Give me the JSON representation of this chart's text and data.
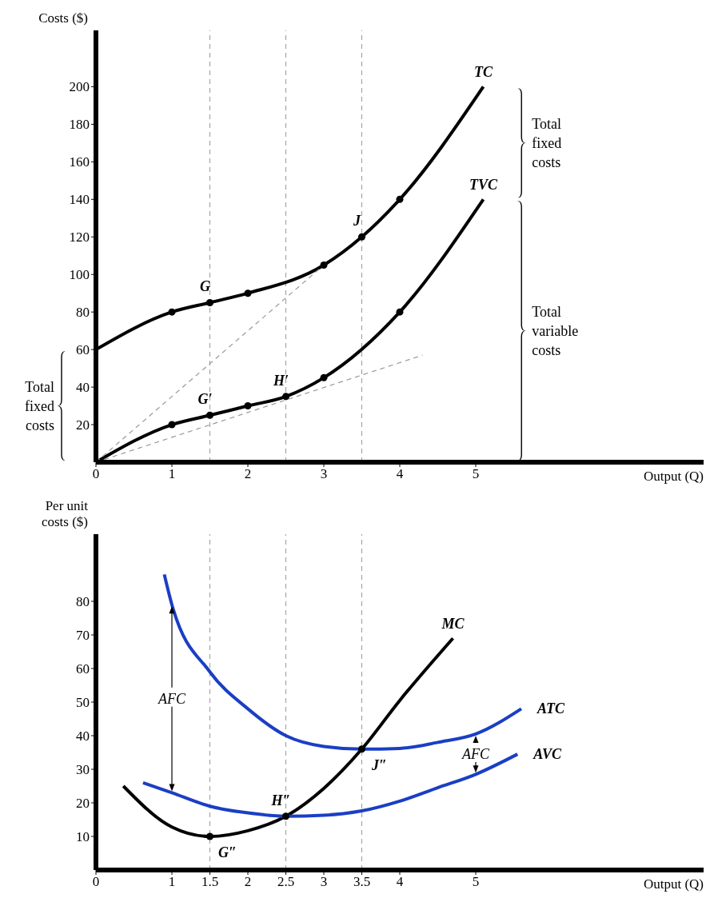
{
  "chart_data": [
    {
      "type": "line",
      "ylabel": "Costs ($)",
      "xlabel": "Output (Q)",
      "xlim": [
        0,
        8
      ],
      "xticks": [
        0,
        1,
        2,
        3,
        4,
        5
      ],
      "ylim": [
        0,
        230
      ],
      "yticks": [
        20,
        40,
        60,
        80,
        100,
        120,
        140,
        160,
        180,
        200
      ],
      "marker": "none",
      "series": [
        {
          "name": "TC",
          "color": "#000000",
          "x": [
            0,
            1,
            1.5,
            2,
            3,
            3.5,
            4,
            5.1
          ],
          "values": [
            60,
            80,
            85,
            90,
            105,
            120,
            140,
            200
          ]
        },
        {
          "name": "TVC",
          "color": "#000000",
          "x": [
            0,
            1,
            1.5,
            2,
            2.5,
            3,
            4,
            5.1
          ],
          "values": [
            0,
            20,
            25,
            30,
            35,
            45,
            80,
            140
          ]
        },
        {
          "type": "line",
          "color": "#999999",
          "line_style": "dashed",
          "x": [
            0,
            3
          ],
          "values": [
            0,
            105
          ]
        },
        {
          "type": "line",
          "color": "#999999",
          "line_style": "dashed",
          "x": [
            0,
            4.3
          ],
          "values": [
            0,
            57
          ]
        },
        {
          "type": "scatter",
          "color": "#000000",
          "marker": "circle",
          "x": [
            1,
            1.5,
            2,
            3,
            3.5,
            4,
            1,
            1.5,
            2,
            2.5,
            3,
            4
          ],
          "values": [
            80,
            85,
            90,
            105,
            120,
            140,
            20,
            25,
            30,
            35,
            45,
            80
          ]
        }
      ],
      "ref_lines": [
        {
          "axis": "x",
          "value": 1.5,
          "color": "#999999",
          "line_style": "dashed"
        },
        {
          "axis": "x",
          "value": 2.5,
          "color": "#999999",
          "line_style": "dashed"
        },
        {
          "axis": "x",
          "value": 3.5,
          "color": "#999999",
          "line_style": "dashed"
        }
      ],
      "annotations": [
        "Total fixed costs",
        "Total fixed costs",
        "Total variable costs",
        {
          "text": "G",
          "x": 1.5,
          "y": 85
        },
        {
          "text": "J",
          "x": 3.5,
          "y": 120
        },
        {
          "text": "G′",
          "x": 1.5,
          "y": 25
        },
        {
          "text": "H′",
          "x": 2.5,
          "y": 35
        }
      ]
    },
    {
      "type": "line",
      "ylabel": "Per unit costs ($)",
      "xlabel": "Output (Q)",
      "xlim": [
        0,
        8
      ],
      "xticks": [
        0,
        1,
        1.5,
        2,
        2.5,
        3,
        3.5,
        4,
        5
      ],
      "ylim": [
        0,
        100
      ],
      "yticks": [
        10,
        20,
        30,
        40,
        50,
        60,
        70,
        80
      ],
      "marker": "none",
      "series": [
        {
          "name": "MC",
          "color": "#000000",
          "x": [
            0.36,
            1,
            1.5,
            2,
            2.5,
            3,
            3.5,
            4,
            4.7
          ],
          "values": [
            25,
            12.8,
            10,
            11.7,
            16,
            24.3,
            36,
            50.5,
            69
          ]
        },
        {
          "name": "ATC",
          "color": "#1a3fc4",
          "x": [
            0.9,
            1,
            1.5,
            2,
            2.5,
            3,
            3.5,
            4,
            4.5,
            5,
            5.6
          ],
          "values": [
            88,
            79,
            59,
            48,
            40,
            36.8,
            36,
            36.2,
            38,
            40.5,
            48
          ]
        },
        {
          "name": "AVC",
          "color": "#1a3fc4",
          "x": [
            0.62,
            1,
            1.5,
            2,
            2.5,
            3,
            3.5,
            4,
            4.5,
            5,
            5.55
          ],
          "values": [
            26,
            23,
            19,
            17,
            16,
            16.3,
            17.6,
            20.5,
            24.5,
            28.5,
            34.5
          ]
        },
        {
          "type": "scatter",
          "color": "#000000",
          "marker": "circle",
          "x": [
            1.5,
            2.5,
            3.5
          ],
          "values": [
            10,
            16,
            36
          ]
        }
      ],
      "ref_lines": [
        {
          "axis": "x",
          "value": 1.5,
          "color": "#999999",
          "line_style": "dashed"
        },
        {
          "axis": "x",
          "value": 2.5,
          "color": "#999999",
          "line_style": "dashed"
        },
        {
          "axis": "x",
          "value": 3.5,
          "color": "#999999",
          "line_style": "dashed"
        }
      ],
      "annotations": [
        {
          "text": "G″",
          "x": 1.5,
          "y": 10
        },
        {
          "text": "H″",
          "x": 2.5,
          "y": 16
        },
        {
          "text": "J″",
          "x": 3.5,
          "y": 36
        },
        {
          "text": "AFC",
          "x": 1,
          "y": 79
        },
        {
          "text": "AFC",
          "x": 5,
          "y": 40.5
        }
      ]
    }
  ]
}
